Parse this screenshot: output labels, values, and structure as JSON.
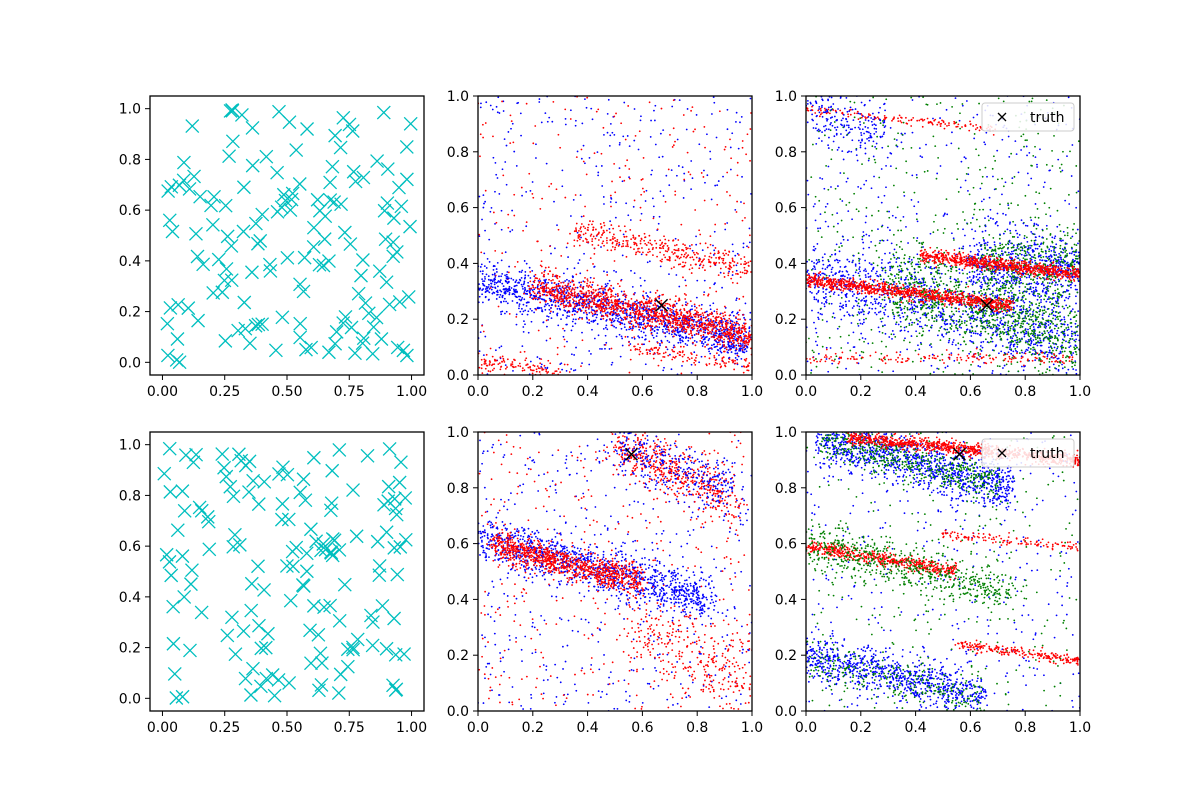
{
  "chart_data": [
    {
      "panel": "top-left",
      "type": "scatter",
      "xlim": [
        -0.05,
        1.05
      ],
      "ylim": [
        -0.05,
        1.05
      ],
      "xticks": [
        "0.00",
        "0.25",
        "0.50",
        "0.75",
        "1.00"
      ],
      "yticks": [
        "0.0",
        "0.2",
        "0.4",
        "0.6",
        "0.8",
        "1.0"
      ],
      "series": [
        {
          "marker": "x",
          "color": "#00bfbf",
          "points": "uniform random sample over unit square, ~150 points",
          "count": 150,
          "seed": 11
        }
      ]
    },
    {
      "panel": "top-middle",
      "type": "scatter",
      "xlim": [
        0,
        1
      ],
      "ylim": [
        0,
        1
      ],
      "xticks": [
        "0.0",
        "0.2",
        "0.4",
        "0.6",
        "0.8",
        "1.0"
      ],
      "yticks": [
        "0.0",
        "0.2",
        "0.4",
        "0.6",
        "0.8",
        "1.0"
      ],
      "bands": [
        {
          "color": "#0000ff",
          "x": [
            0.0,
            1.0
          ],
          "y": [
            0.34,
            0.12
          ],
          "spread": 0.04,
          "count": 1300
        },
        {
          "color": "#ff0000",
          "x": [
            0.2,
            1.0
          ],
          "y": [
            0.32,
            0.14
          ],
          "spread": 0.03,
          "count": 1200
        },
        {
          "color": "#ff0000",
          "x": [
            0.35,
            1.0
          ],
          "y": [
            0.52,
            0.38
          ],
          "spread": 0.025,
          "count": 350
        },
        {
          "color": "#ff0000",
          "x": [
            0.0,
            0.3
          ],
          "y": [
            0.05,
            0.0
          ],
          "spread": 0.02,
          "count": 120
        },
        {
          "color": "#ff0000",
          "x": [
            0.55,
            1.0
          ],
          "y": [
            0.1,
            0.03
          ],
          "spread": 0.015,
          "count": 120
        }
      ],
      "background": [
        {
          "color": "#0000ff",
          "count": 450
        },
        {
          "color": "#ff0000",
          "count": 280
        }
      ],
      "truth": {
        "x": 0.67,
        "y": 0.25
      }
    },
    {
      "panel": "top-right",
      "type": "scatter",
      "xlim": [
        0,
        1
      ],
      "ylim": [
        0,
        1
      ],
      "xticks": [
        "0.0",
        "0.2",
        "0.4",
        "0.6",
        "0.8",
        "1.0"
      ],
      "yticks": [
        "0.0",
        "0.2",
        "0.4",
        "0.6",
        "0.8",
        "1.0"
      ],
      "bands": [
        {
          "color": "#0000ff",
          "x": [
            0.0,
            1.0
          ],
          "y": [
            0.36,
            0.12
          ],
          "spread": 0.07,
          "count": 1100
        },
        {
          "color": "#008000",
          "x": [
            0.3,
            1.0
          ],
          "y": [
            0.33,
            0.12
          ],
          "spread": 0.07,
          "count": 900
        },
        {
          "color": "#0000ff",
          "x": [
            0.6,
            1.0
          ],
          "y": [
            0.4,
            0.38
          ],
          "spread": 0.06,
          "count": 600
        },
        {
          "color": "#008000",
          "x": [
            0.65,
            1.0
          ],
          "y": [
            0.38,
            0.4
          ],
          "spread": 0.06,
          "count": 400
        },
        {
          "color": "#ff0000",
          "x": [
            0.0,
            0.75
          ],
          "y": [
            0.34,
            0.25
          ],
          "spread": 0.012,
          "count": 900
        },
        {
          "color": "#ff0000",
          "x": [
            0.42,
            1.0
          ],
          "y": [
            0.43,
            0.36
          ],
          "spread": 0.012,
          "count": 700
        },
        {
          "color": "#ff0000",
          "x": [
            0.0,
            1.0
          ],
          "y": [
            0.06,
            0.06
          ],
          "spread": 0.01,
          "count": 160
        },
        {
          "color": "#ff0000",
          "x": [
            0.0,
            0.7
          ],
          "y": [
            0.95,
            0.88
          ],
          "spread": 0.008,
          "count": 140
        },
        {
          "color": "#0000ff",
          "x": [
            0.0,
            0.3
          ],
          "y": [
            0.95,
            0.85
          ],
          "spread": 0.05,
          "count": 180
        }
      ],
      "background": [
        {
          "color": "#0000ff",
          "count": 500
        },
        {
          "color": "#008000",
          "count": 450
        }
      ],
      "truth": {
        "x": 0.66,
        "y": 0.25
      },
      "legend": {
        "label": "truth",
        "marker": "x",
        "position": "upper right"
      }
    },
    {
      "panel": "bottom-left",
      "type": "scatter",
      "xlim": [
        -0.05,
        1.05
      ],
      "ylim": [
        -0.05,
        1.05
      ],
      "xticks": [
        "0.00",
        "0.25",
        "0.50",
        "0.75",
        "1.00"
      ],
      "yticks": [
        "0.0",
        "0.2",
        "0.4",
        "0.6",
        "0.8",
        "1.0"
      ],
      "series": [
        {
          "marker": "x",
          "color": "#00bfbf",
          "points": "uniform random sample over unit square, ~150 points",
          "count": 150,
          "seed": 29
        }
      ]
    },
    {
      "panel": "bottom-middle",
      "type": "scatter",
      "xlim": [
        0,
        1
      ],
      "ylim": [
        0,
        1
      ],
      "xticks": [
        "0.0",
        "0.2",
        "0.4",
        "0.6",
        "0.8",
        "1.0"
      ],
      "yticks": [
        "0.0",
        "0.2",
        "0.4",
        "0.6",
        "0.8",
        "1.0"
      ],
      "bands": [
        {
          "color": "#0000ff",
          "x": [
            0.0,
            0.85
          ],
          "y": [
            0.62,
            0.4
          ],
          "spread": 0.04,
          "count": 1100
        },
        {
          "color": "#ff0000",
          "x": [
            0.05,
            0.6
          ],
          "y": [
            0.6,
            0.46
          ],
          "spread": 0.025,
          "count": 900
        },
        {
          "color": "#ff0000",
          "x": [
            0.5,
            0.95
          ],
          "y": [
            0.95,
            0.75
          ],
          "spread": 0.05,
          "count": 500
        },
        {
          "color": "#0000ff",
          "x": [
            0.5,
            0.95
          ],
          "y": [
            0.95,
            0.78
          ],
          "spread": 0.05,
          "count": 300
        },
        {
          "color": "#ff0000",
          "x": [
            0.55,
            1.0
          ],
          "y": [
            0.3,
            0.1
          ],
          "spread": 0.08,
          "count": 300
        }
      ],
      "background": [
        {
          "color": "#0000ff",
          "count": 450
        },
        {
          "color": "#ff0000",
          "count": 350
        }
      ],
      "truth": {
        "x": 0.56,
        "y": 0.92
      }
    },
    {
      "panel": "bottom-right",
      "type": "scatter",
      "xlim": [
        0,
        1
      ],
      "ylim": [
        0,
        1
      ],
      "xticks": [
        "0.0",
        "0.2",
        "0.4",
        "0.6",
        "0.8",
        "1.0"
      ],
      "yticks": [
        "0.0",
        "0.2",
        "0.4",
        "0.6",
        "0.8",
        "1.0"
      ],
      "bands": [
        {
          "color": "#0000ff",
          "x": [
            0.05,
            0.75
          ],
          "y": [
            0.98,
            0.8
          ],
          "spread": 0.05,
          "count": 1100
        },
        {
          "color": "#008000",
          "x": [
            0.05,
            0.7
          ],
          "y": [
            0.98,
            0.82
          ],
          "spread": 0.04,
          "count": 500
        },
        {
          "color": "#ff0000",
          "x": [
            0.15,
            1.0
          ],
          "y": [
            0.98,
            0.9
          ],
          "spread": 0.012,
          "count": 900
        },
        {
          "color": "#ff0000",
          "x": [
            0.0,
            0.55
          ],
          "y": [
            0.59,
            0.5
          ],
          "spread": 0.012,
          "count": 500
        },
        {
          "color": "#008000",
          "x": [
            0.0,
            0.75
          ],
          "y": [
            0.6,
            0.42
          ],
          "spread": 0.04,
          "count": 600
        },
        {
          "color": "#ff0000",
          "x": [
            0.5,
            1.0
          ],
          "y": [
            0.63,
            0.59
          ],
          "spread": 0.008,
          "count": 120
        },
        {
          "color": "#ff0000",
          "x": [
            0.55,
            1.0
          ],
          "y": [
            0.24,
            0.18
          ],
          "spread": 0.01,
          "count": 220
        },
        {
          "color": "#0000ff",
          "x": [
            0.0,
            0.65
          ],
          "y": [
            0.2,
            0.05
          ],
          "spread": 0.04,
          "count": 800
        },
        {
          "color": "#008000",
          "x": [
            0.0,
            0.65
          ],
          "y": [
            0.18,
            0.04
          ],
          "spread": 0.04,
          "count": 250
        }
      ],
      "background": [
        {
          "color": "#0000ff",
          "count": 350
        },
        {
          "color": "#008000",
          "count": 300
        }
      ],
      "truth": {
        "x": 0.56,
        "y": 0.92
      },
      "legend": {
        "label": "truth",
        "marker": "x",
        "position": "upper right"
      }
    }
  ]
}
